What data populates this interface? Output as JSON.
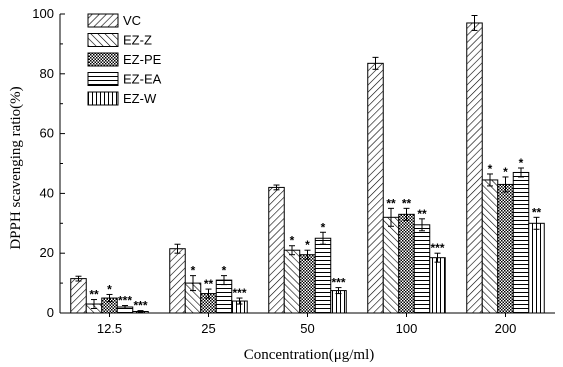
{
  "chart_data": {
    "type": "bar",
    "title": "",
    "xlabel": "Concentration(μg/ml)",
    "ylabel": "DPPH scavenging ratio(%)",
    "ylim": [
      0,
      100
    ],
    "yticks": [
      "0",
      "20",
      "40",
      "60",
      "80",
      "100"
    ],
    "categories": [
      "12.5",
      "25",
      "50",
      "100",
      "200"
    ],
    "legend_position": "top-left",
    "grid": false,
    "series": [
      {
        "name": "VC",
        "pattern": "diag-right",
        "values": [
          11.5,
          21.5,
          42,
          83.5,
          97
        ],
        "errors": [
          0.8,
          1.5,
          0.8,
          2,
          2.5
        ],
        "sig": [
          "",
          "",
          "",
          "",
          ""
        ]
      },
      {
        "name": "EZ-Z",
        "pattern": "diag-left",
        "values": [
          3,
          10,
          21,
          32,
          44.5
        ],
        "errors": [
          1.5,
          2.5,
          1.5,
          3,
          2
        ],
        "sig": [
          "**",
          "*",
          "*",
          "**",
          "*"
        ]
      },
      {
        "name": "EZ-PE",
        "pattern": "crosshatch",
        "values": [
          5,
          6.5,
          19.5,
          33,
          43
        ],
        "errors": [
          1.2,
          1.5,
          1.5,
          2,
          2.5
        ],
        "sig": [
          "*",
          "**",
          "*",
          "**",
          "*"
        ]
      },
      {
        "name": "EZ-EA",
        "pattern": "horizontal",
        "values": [
          2,
          11,
          25,
          29.5,
          47
        ],
        "errors": [
          0.5,
          1.5,
          2,
          2,
          1.5
        ],
        "sig": [
          "***",
          "*",
          "*",
          "**",
          "*"
        ]
      },
      {
        "name": "EZ-W",
        "pattern": "vertical",
        "values": [
          0.5,
          4,
          7.5,
          18.5,
          30
        ],
        "errors": [
          0.3,
          1,
          1,
          1.5,
          2
        ],
        "sig": [
          "***",
          "***",
          "***",
          "***",
          "**"
        ]
      }
    ]
  }
}
